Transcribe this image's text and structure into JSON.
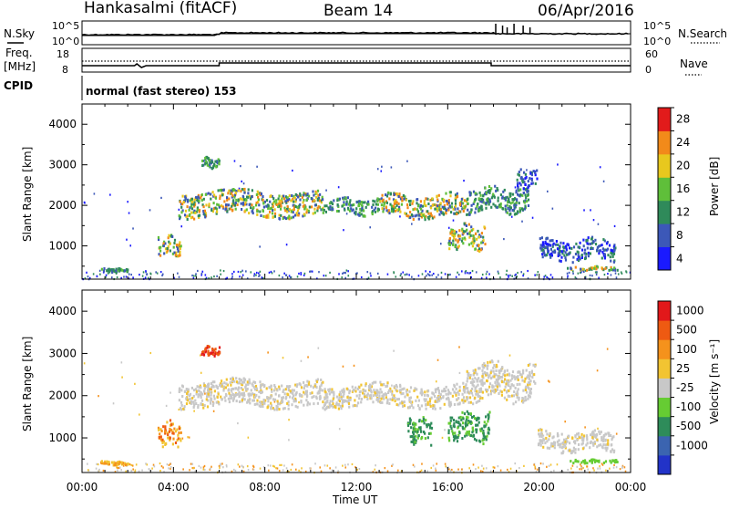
{
  "header": {
    "site": "Hankasalmi (fitACF)",
    "beam": "Beam 14",
    "date": "06/Apr/2016"
  },
  "status_panel": {
    "nsky_label": "N.Sky",
    "nsky_ticks": [
      "10^5",
      "10^0"
    ],
    "nsearch_label": "N.Search",
    "nsearch_ticks": [
      "10^5",
      "10^0"
    ],
    "freq_label": "Freq.",
    "freq_unit": "[MHz]",
    "freq_ticks": [
      "18",
      "8"
    ],
    "nave_label": "Nave",
    "nave_ticks": [
      "60",
      "0"
    ],
    "cpid_label": "CPID",
    "cpid_text": "normal (fast stereo) 153"
  },
  "chart_data": [
    {
      "type": "heatmap",
      "name": "power",
      "ylabel": "Slant Range [km]",
      "ylim": [
        180,
        4500
      ],
      "yticks": [
        "1000",
        "2000",
        "3000",
        "4000"
      ],
      "xlim": [
        0,
        24
      ],
      "colorbar_label": "Power [dB]",
      "colorbar_ticks": [
        "4",
        "8",
        "12",
        "16",
        "20",
        "24",
        "28"
      ],
      "colorbar_colors": [
        "#1a1aff",
        "#3c58b8",
        "#2f8a5a",
        "#5fbf3a",
        "#e8c81e",
        "#f28a1a",
        "#e21b1b"
      ],
      "colorbar_range": [
        0,
        30
      ],
      "echo_regions": [
        {
          "t0": 4.2,
          "t1": 10.5,
          "r0": 1750,
          "r1": 2400,
          "level": "high"
        },
        {
          "t0": 10.5,
          "t1": 13.0,
          "r0": 1800,
          "r1": 2200,
          "level": "mid"
        },
        {
          "t0": 13.0,
          "t1": 16.8,
          "r0": 1700,
          "r1": 2300,
          "level": "high"
        },
        {
          "t0": 16.8,
          "t1": 19.5,
          "r0": 1850,
          "r1": 2500,
          "level": "mid"
        },
        {
          "t0": 19.0,
          "t1": 19.9,
          "r0": 2400,
          "r1": 2900,
          "level": "low"
        },
        {
          "t0": 5.2,
          "t1": 6.0,
          "r0": 2950,
          "r1": 3200,
          "level": "mid"
        },
        {
          "t0": 3.3,
          "t1": 4.3,
          "r0": 800,
          "r1": 1300,
          "level": "high"
        },
        {
          "t0": 16.0,
          "t1": 17.6,
          "r0": 950,
          "r1": 1550,
          "level": "high"
        },
        {
          "t0": 20.0,
          "t1": 23.3,
          "r0": 650,
          "r1": 1200,
          "level": "low"
        },
        {
          "t0": 21.2,
          "t1": 23.4,
          "r0": 430,
          "r1": 520,
          "level": "high"
        },
        {
          "t0": 0.8,
          "t1": 2.0,
          "r0": 380,
          "r1": 470,
          "level": "mid"
        }
      ]
    },
    {
      "type": "heatmap",
      "name": "velocity",
      "ylabel": "Slant Range [km]",
      "ylim": [
        180,
        4500
      ],
      "yticks": [
        "1000",
        "2000",
        "3000",
        "4000"
      ],
      "xlabel": "Time UT",
      "xlim": [
        0,
        24
      ],
      "xticks": [
        "00:00",
        "04:00",
        "08:00",
        "12:00",
        "16:00",
        "20:00",
        "00:00"
      ],
      "colorbar_label": "Velocity [m s⁻¹]",
      "colorbar_ticks": [
        "1000",
        "500",
        "100",
        "25",
        "-25",
        "-100",
        "-500",
        "-1000"
      ],
      "colorbar_colors": [
        "#2233c8",
        "#3b64b0",
        "#2e8c5a",
        "#66cc33",
        "#c8c8c8",
        "#f2c432",
        "#f5921c",
        "#ee5a12",
        "#e2181a"
      ],
      "echo_regions": [
        {
          "t0": 4.2,
          "t1": 10.5,
          "r0": 1750,
          "r1": 2400,
          "level": "grey"
        },
        {
          "t0": 10.5,
          "t1": 16.8,
          "r0": 1750,
          "r1": 2300,
          "level": "grey"
        },
        {
          "t0": 16.8,
          "t1": 19.8,
          "r0": 1900,
          "r1": 2800,
          "level": "grey"
        },
        {
          "t0": 5.2,
          "t1": 6.0,
          "r0": 2950,
          "r1": 3200,
          "level": "red"
        },
        {
          "t0": 3.3,
          "t1": 4.3,
          "r0": 850,
          "r1": 1400,
          "level": "orange"
        },
        {
          "t0": 14.2,
          "t1": 15.3,
          "r0": 900,
          "r1": 1500,
          "level": "green"
        },
        {
          "t0": 16.0,
          "t1": 17.8,
          "r0": 950,
          "r1": 1650,
          "level": "green"
        },
        {
          "t0": 19.9,
          "t1": 23.3,
          "r0": 700,
          "r1": 1200,
          "level": "grey"
        },
        {
          "t0": 21.2,
          "t1": 23.4,
          "r0": 430,
          "r1": 520,
          "level": "lime"
        },
        {
          "t0": 0.8,
          "t1": 2.0,
          "r0": 380,
          "r1": 470,
          "level": "yellow"
        }
      ]
    }
  ]
}
